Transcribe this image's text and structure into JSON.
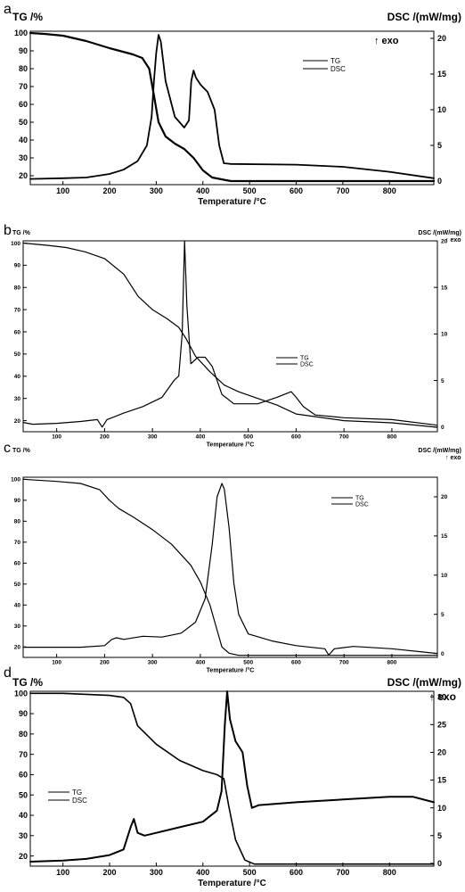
{
  "chart_data": [
    {
      "panel": "a",
      "type": "line",
      "title": "",
      "xlabel": "Temperature /°C",
      "ylabel_left": "TG /%",
      "ylabel_right": "DSC /(mW/mg)",
      "exo_label": "↑ exo",
      "xlim": [
        30,
        895
      ],
      "ylim_left": [
        15,
        101
      ],
      "ylim_right": [
        -0.5,
        21
      ],
      "x_ticks": [
        100,
        200,
        300,
        400,
        500,
        600,
        700,
        800
      ],
      "y_left_ticks": [
        20,
        30,
        40,
        50,
        60,
        70,
        80,
        90,
        100
      ],
      "y_right_ticks": [
        0,
        5,
        10,
        15,
        20
      ],
      "legend": [
        "TG",
        "DSC"
      ],
      "legend_position": "top-right",
      "series": [
        {
          "name": "TG",
          "axis": "left",
          "x": [
            30,
            60,
            100,
            150,
            200,
            250,
            270,
            285,
            295,
            305,
            320,
            340,
            360,
            380,
            400,
            420,
            440,
            460,
            600,
            895
          ],
          "y": [
            100,
            99.5,
            98.5,
            95.5,
            91.5,
            88,
            86,
            80,
            65,
            50,
            42,
            38,
            35,
            30,
            23,
            19,
            18,
            17,
            17,
            17
          ]
        },
        {
          "name": "DSC",
          "axis": "right",
          "x": [
            30,
            100,
            150,
            180,
            200,
            230,
            260,
            280,
            290,
            295,
            300,
            305,
            310,
            320,
            340,
            360,
            370,
            375,
            380,
            385,
            395,
            410,
            425,
            435,
            445,
            460,
            600,
            700,
            800,
            895
          ],
          "y": [
            0.3,
            0.4,
            0.5,
            0.8,
            1.0,
            1.6,
            2.8,
            5,
            9,
            14,
            18,
            20.5,
            19.5,
            14,
            9,
            7.5,
            8.5,
            14,
            15.5,
            14.5,
            13.5,
            12.5,
            10,
            5,
            2.5,
            2.4,
            2.3,
            2.0,
            1.3,
            0.4
          ]
        }
      ]
    },
    {
      "panel": "b",
      "type": "line",
      "title": "",
      "xlabel": "Temperature /°C",
      "ylabel_left": "TG /%",
      "ylabel_right": "DSC /(mW/mg)",
      "exo_label": "↑ exo",
      "xlim": [
        30,
        895
      ],
      "ylim_left": [
        15,
        101
      ],
      "ylim_right": [
        -0.5,
        20
      ],
      "x_ticks": [
        100,
        200,
        300,
        400,
        500,
        600,
        700,
        800
      ],
      "y_left_ticks": [
        20,
        30,
        40,
        50,
        60,
        70,
        80,
        90,
        100
      ],
      "y_right_ticks": [
        0,
        5,
        10,
        15,
        20
      ],
      "legend": [
        "TG",
        "DSC"
      ],
      "legend_position": "center",
      "series": [
        {
          "name": "TG",
          "axis": "left",
          "x": [
            30,
            80,
            120,
            160,
            200,
            240,
            270,
            300,
            330,
            355,
            370,
            390,
            420,
            450,
            480,
            520,
            560,
            600,
            700,
            800,
            895
          ],
          "y": [
            100,
            99,
            98,
            96,
            93,
            86,
            76,
            70,
            66,
            62,
            57,
            49,
            42,
            36,
            33,
            30,
            27,
            23,
            20,
            19,
            17
          ]
        },
        {
          "name": "DSC",
          "axis": "right",
          "x": [
            30,
            50,
            100,
            150,
            185,
            195,
            205,
            240,
            280,
            320,
            345,
            355,
            362,
            367,
            372,
            380,
            395,
            410,
            425,
            445,
            470,
            520,
            560,
            590,
            600,
            615,
            640,
            700,
            800,
            895
          ],
          "y": [
            0.5,
            0.3,
            0.4,
            0.6,
            0.8,
            0.0,
            0.8,
            1.5,
            2.2,
            3.2,
            5.0,
            5.5,
            10,
            20,
            13,
            6.8,
            7.5,
            7.5,
            6.5,
            3.5,
            2.5,
            2.5,
            3.2,
            3.8,
            3.2,
            2.2,
            1.3,
            1.0,
            0.8,
            0.2
          ]
        }
      ]
    },
    {
      "panel": "c",
      "type": "line",
      "title": "",
      "xlabel": "Temperature /°C",
      "ylabel_left": "TG /%",
      "ylabel_right": "DSC /(mW/mg)",
      "exo_label": "↑ exo",
      "xlim": [
        30,
        895
      ],
      "ylim_left": [
        15,
        101
      ],
      "ylim_right": [
        -0.5,
        22.5
      ],
      "x_ticks": [
        100,
        200,
        300,
        400,
        500,
        600,
        700,
        800
      ],
      "y_left_ticks": [
        20,
        30,
        40,
        50,
        60,
        70,
        80,
        90,
        100
      ],
      "y_right_ticks": [
        0,
        5,
        10,
        15,
        20
      ],
      "legend": [
        "TG",
        "DSC"
      ],
      "legend_position": "top-right",
      "series": [
        {
          "name": "TG",
          "axis": "left",
          "x": [
            30,
            100,
            150,
            190,
            210,
            230,
            260,
            300,
            340,
            380,
            400,
            420,
            435,
            445,
            460,
            480,
            600,
            895
          ],
          "y": [
            100,
            99,
            98,
            95,
            90,
            86,
            82,
            76,
            69,
            59,
            51,
            40,
            28,
            20,
            17,
            16,
            16,
            16
          ]
        },
        {
          "name": "DSC",
          "axis": "right",
          "x": [
            30,
            100,
            150,
            200,
            215,
            225,
            240,
            280,
            320,
            360,
            390,
            410,
            425,
            435,
            445,
            450,
            460,
            470,
            480,
            500,
            550,
            600,
            660,
            668,
            680,
            720,
            800,
            895
          ],
          "y": [
            0.8,
            0.8,
            0.8,
            1.0,
            1.8,
            2.0,
            1.8,
            2.2,
            2.1,
            2.6,
            4.0,
            7,
            14,
            20,
            21.7,
            21,
            16,
            9,
            5,
            2.5,
            1.6,
            1.0,
            0.6,
            -0.2,
            0.6,
            0.9,
            0.6,
            0.0
          ]
        }
      ]
    },
    {
      "panel": "d",
      "type": "line",
      "title": "",
      "xlabel": "Temperature /°C",
      "ylabel_left": "TG /%",
      "ylabel_right": "DSC /(mW/mg)",
      "exo_label": "↑ exo",
      "xlim": [
        30,
        895
      ],
      "ylim_left": [
        15,
        101
      ],
      "ylim_right": [
        -0.5,
        31
      ],
      "x_ticks": [
        100,
        200,
        300,
        400,
        500,
        600,
        700,
        800
      ],
      "y_left_ticks": [
        20,
        30,
        40,
        50,
        60,
        70,
        80,
        90,
        100
      ],
      "y_right_ticks": [
        0,
        5,
        10,
        15,
        20,
        25,
        30
      ],
      "legend": [
        "TG",
        "DSC"
      ],
      "legend_position": "left",
      "series": [
        {
          "name": "TG",
          "axis": "left",
          "x": [
            30,
            100,
            200,
            230,
            245,
            260,
            300,
            350,
            400,
            430,
            445,
            455,
            470,
            490,
            510,
            600,
            895
          ],
          "y": [
            100,
            100,
            99,
            98,
            95,
            84,
            75,
            67,
            62,
            60,
            58,
            45,
            28,
            18,
            16,
            16,
            16
          ]
        },
        {
          "name": "DSC",
          "axis": "right",
          "x": [
            30,
            100,
            150,
            200,
            230,
            245,
            252,
            260,
            275,
            300,
            350,
            400,
            430,
            440,
            447,
            452,
            458,
            470,
            485,
            495,
            505,
            520,
            600,
            700,
            800,
            850,
            895
          ],
          "y": [
            0.3,
            0.5,
            0.8,
            1.5,
            2.5,
            6.5,
            8.0,
            5.5,
            5.0,
            5.5,
            6.5,
            7.5,
            9.5,
            13,
            25,
            31,
            26,
            22,
            20,
            14,
            10,
            10.5,
            11,
            11.5,
            12,
            12,
            11
          ]
        }
      ]
    }
  ]
}
